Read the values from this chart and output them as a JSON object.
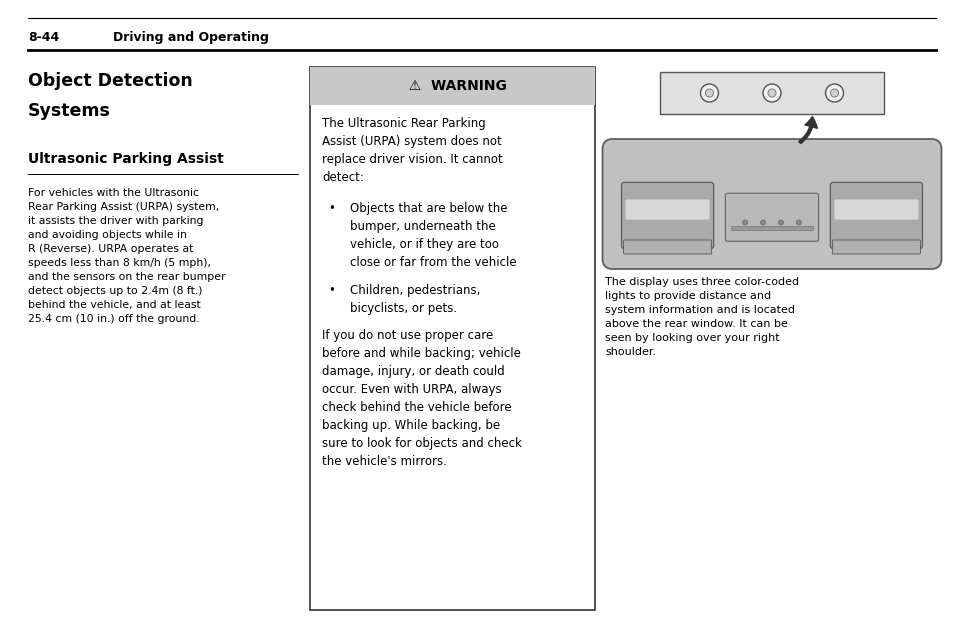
{
  "bg_color": "#ffffff",
  "page_width": 9.54,
  "page_height": 6.38,
  "header_text": "8-44",
  "header_subtext": "Driving and Operating",
  "title_line1": "Object Detection",
  "title_line2": "Systems",
  "subtitle": "Ultrasonic Parking Assist",
  "left_body": "For vehicles with the Ultrasonic\nRear Parking Assist (URPA) system,\nit assists the driver with parking\nand avoiding objects while in\nR (Reverse). URPA operates at\nspeeds less than 8 km/h (5 mph),\nand the sensors on the rear bumper\ndetect objects up to 2.4m (8 ft.)\nbehind the vehicle, and at least\n25.4 cm (10 in.) off the ground.",
  "warning_title": "  ⚠  WARNING",
  "warning_intro": "The Ultrasonic Rear Parking\nAssist (URPA) system does not\nreplace driver vision. It cannot\ndetect:",
  "bullet1_dot": "•",
  "bullet1_text": "Objects that are below the\nbumper, underneath the\nvehicle, or if they are too\nclose or far from the vehicle",
  "bullet2_dot": "•",
  "bullet2_text": "Children, pedestrians,\nbicyclists, or pets.",
  "warning_footer": "If you do not use proper care\nbefore and while backing; vehicle\ndamage, injury, or death could\noccur. Even with URPA, always\ncheck behind the vehicle before\nbacking up. While backing, be\nsure to look for objects and check\nthe vehicle's mirrors.",
  "right_caption": "The display uses three color-coded\nlights to provide distance and\nsystem information and is located\nabove the rear window. It can be\nseen by looking over your right\nshoulder.",
  "text_color": "#000000",
  "warning_bg": "#c8c8c8",
  "warning_box_bg": "#ffffff",
  "warning_border": "#333333",
  "divider_color": "#000000",
  "device_body_color": "#c0c0c0",
  "device_border": "#555555",
  "sensor_box_bg": "#e0e0e0",
  "sensor_circle_bg": "#f0f0f0",
  "vent_color": "#aaaaaa",
  "center_panel_color": "#b8b8b8"
}
